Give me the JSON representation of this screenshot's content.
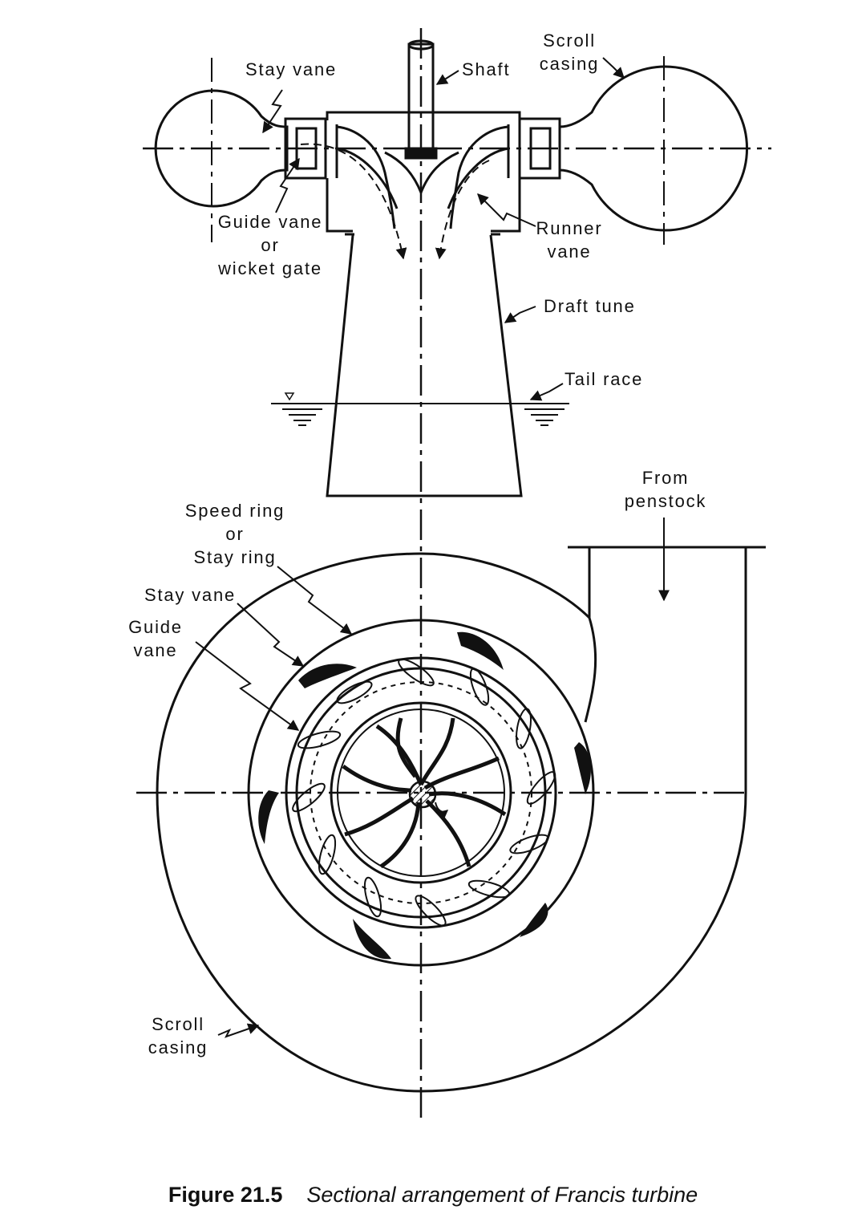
{
  "labels": {
    "stay_vane_top": "Stay vane",
    "shaft": "Shaft",
    "scroll_casing_top_1": "Scroll",
    "scroll_casing_top_2": "casing",
    "guide_vane_top_1": "Guide vane",
    "guide_vane_top_2": "or",
    "guide_vane_top_3": "wicket gate",
    "runner_vane_1": "Runner",
    "runner_vane_2": "vane",
    "draft_tube": "Draft tune",
    "tail_race": "Tail race",
    "from_penstock_1": "From",
    "from_penstock_2": "penstock",
    "speed_ring_1": "Speed ring",
    "speed_ring_2": "or",
    "speed_ring_3": "Stay ring",
    "stay_vane_plan": "Stay vane",
    "guide_vane_plan_1": "Guide",
    "guide_vane_plan_2": "vane",
    "scroll_casing_plan_1": "Scroll",
    "scroll_casing_plan_2": "casing"
  },
  "caption": {
    "number": "Figure 21.5",
    "text": "Sectional arrangement of Francis turbine"
  }
}
